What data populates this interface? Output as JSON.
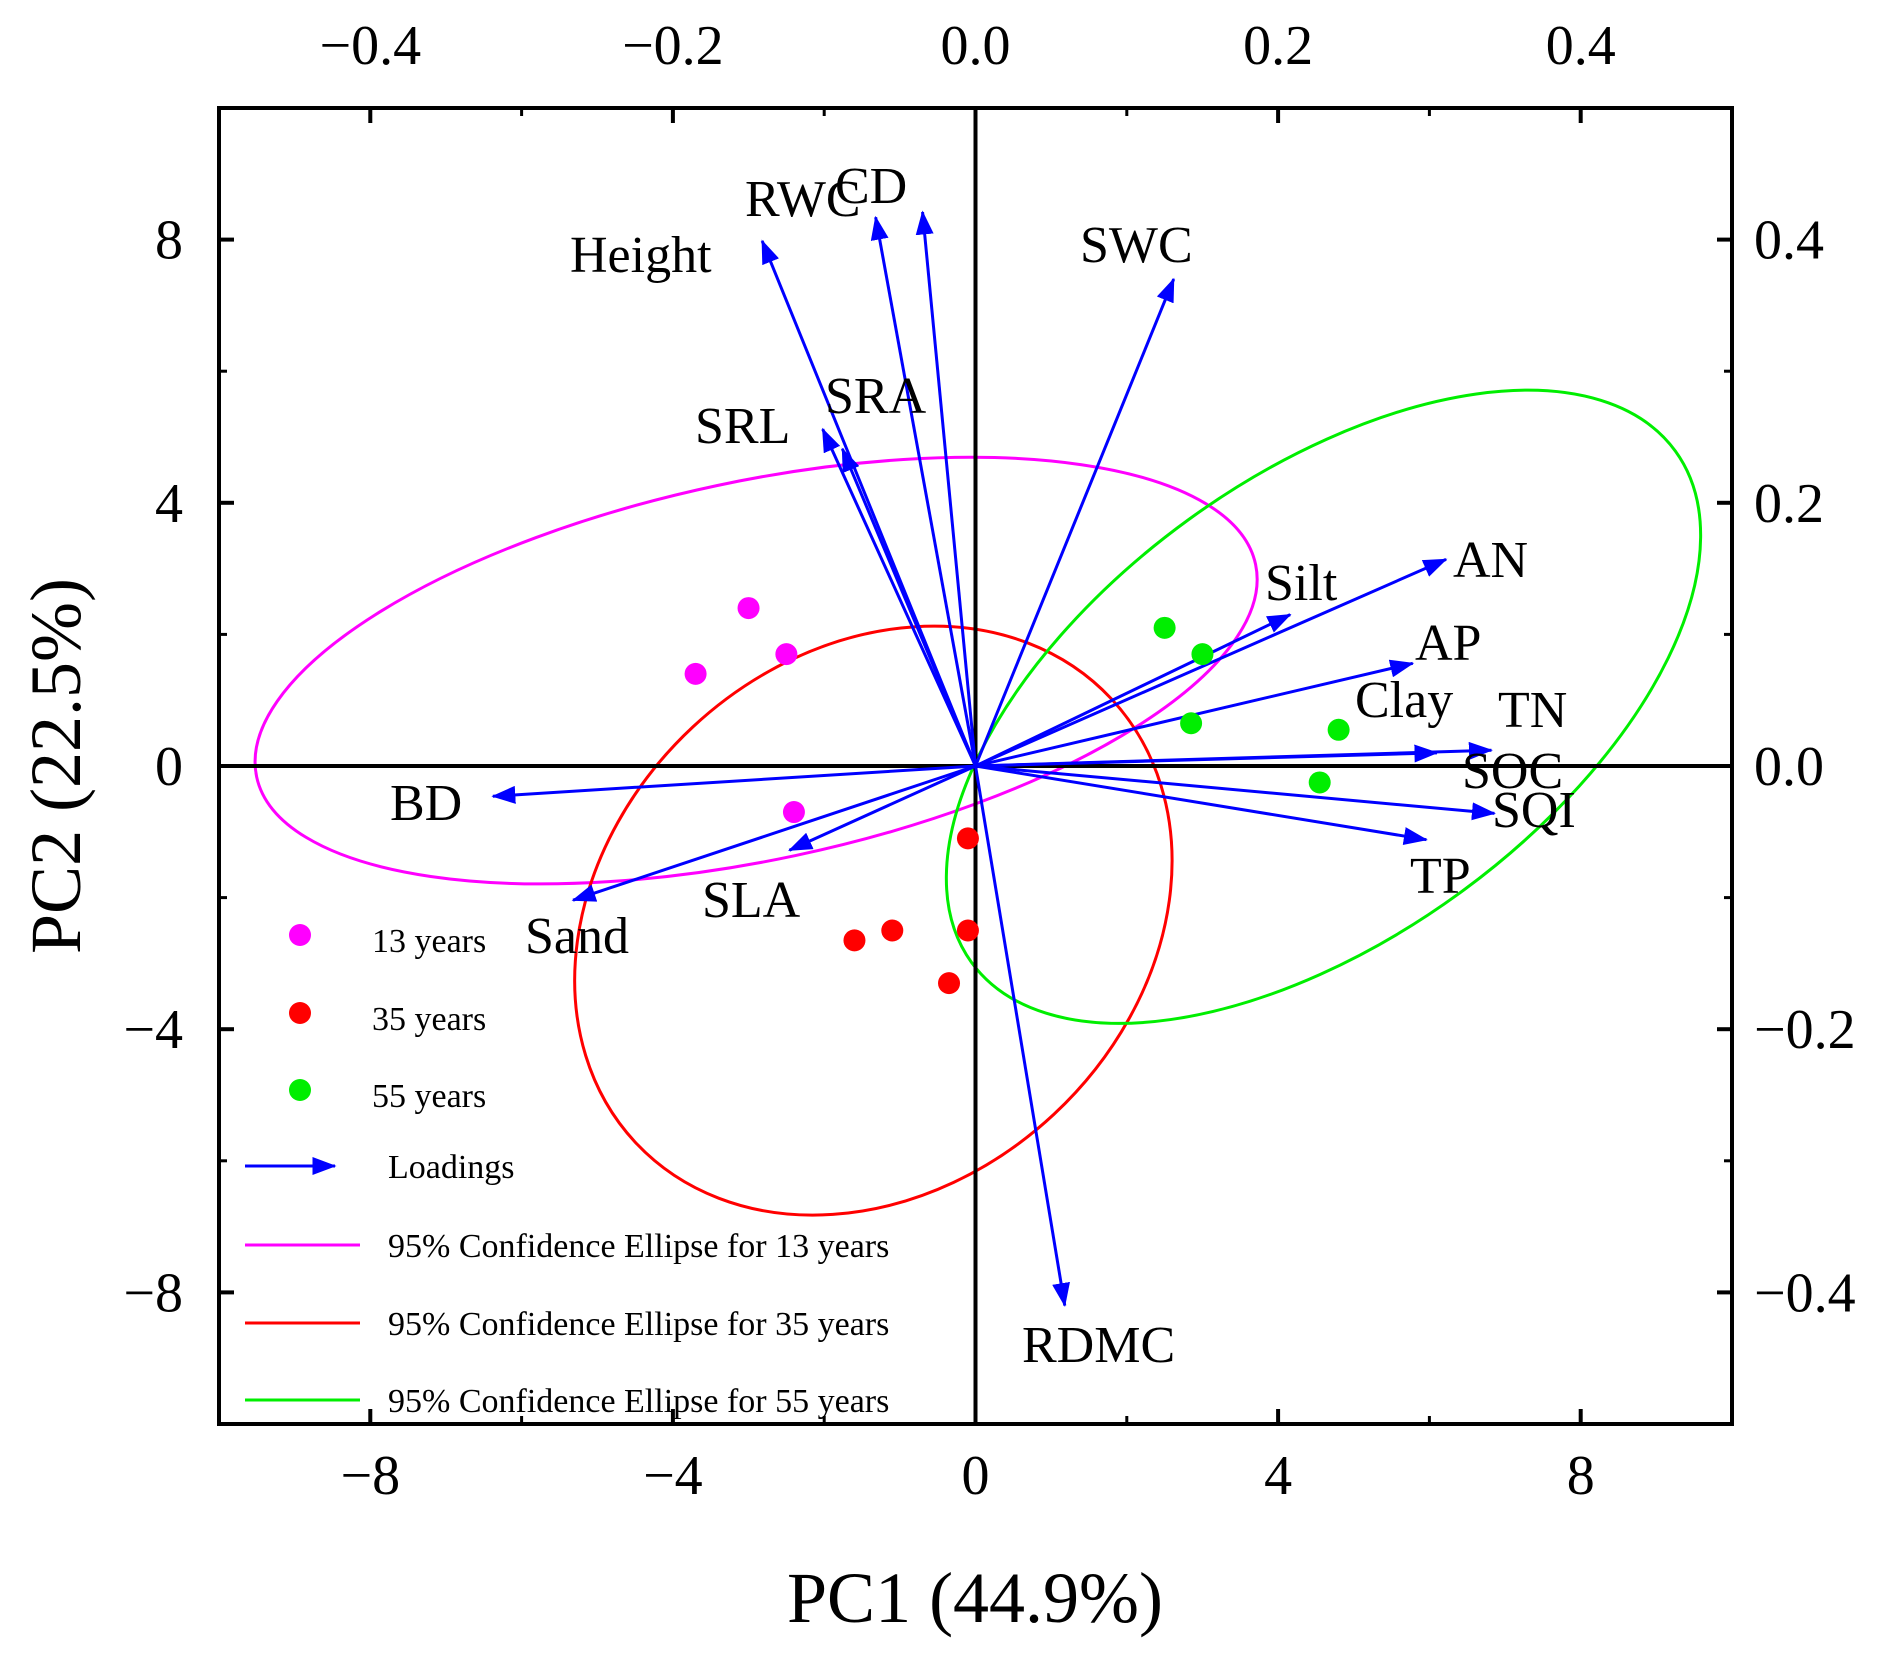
{
  "chart_data": {
    "type": "scatter",
    "subtype": "pca-biplot",
    "xlabel": "PC1 (44.9%)",
    "ylabel": "PC2 (22.5%)",
    "xlim": [
      -10,
      10
    ],
    "ylim": [
      -10,
      10
    ],
    "x_ticks": [
      -8,
      -4,
      0,
      4,
      8
    ],
    "x_tick_labels": [
      "−8",
      "−4",
      "0",
      "4",
      "8"
    ],
    "y_ticks": [
      -8,
      -4,
      0,
      4,
      8
    ],
    "y_tick_labels": [
      "−8",
      "−4",
      "0",
      "4",
      "8"
    ],
    "top_axis": {
      "lim": [
        -0.5,
        0.5
      ],
      "ticks": [
        -0.4,
        -0.2,
        0.0,
        0.2,
        0.4
      ],
      "tick_labels": [
        "−0.4",
        "−0.2",
        "0.0",
        "0.2",
        "0.4"
      ]
    },
    "right_axis": {
      "lim": [
        -0.5,
        0.5
      ],
      "ticks": [
        -0.4,
        -0.2,
        0.0,
        0.2,
        0.4
      ],
      "tick_labels": [
        "−0.4",
        "−0.2",
        "0.0",
        "0.2",
        "0.4"
      ]
    },
    "grid": false,
    "legend_position": "bottom-left",
    "series": [
      {
        "name": "13 years",
        "color": "#ff00ff",
        "points": [
          [
            -3.0,
            2.4
          ],
          [
            -2.5,
            1.7
          ],
          [
            -3.7,
            1.4
          ],
          [
            -2.4,
            -0.7
          ]
        ]
      },
      {
        "name": "35 years",
        "color": "#ff0000",
        "points": [
          [
            -0.1,
            -1.1
          ],
          [
            -0.1,
            -2.5
          ],
          [
            -1.1,
            -2.5
          ],
          [
            -1.6,
            -2.65
          ],
          [
            -0.35,
            -3.3
          ]
        ]
      },
      {
        "name": "55 years",
        "color": "#00ee00",
        "points": [
          [
            2.5,
            2.1
          ],
          [
            3.0,
            1.7
          ],
          [
            2.85,
            0.65
          ],
          [
            4.8,
            0.55
          ],
          [
            4.55,
            -0.25
          ]
        ]
      }
    ],
    "loadings": {
      "name": "Loadings",
      "color": "#0000ff",
      "vectors": [
        {
          "label": "Height",
          "x": -0.141,
          "y": 0.399
        },
        {
          "label": "RWC",
          "x": -0.066,
          "y": 0.417
        },
        {
          "label": "CD",
          "x": -0.035,
          "y": 0.421
        },
        {
          "label": "SWC",
          "x": 0.131,
          "y": 0.37
        },
        {
          "label": "SRL",
          "x": -0.101,
          "y": 0.256
        },
        {
          "label": "SRA",
          "x": -0.088,
          "y": 0.241
        },
        {
          "label": "Silt",
          "x": 0.208,
          "y": 0.115
        },
        {
          "label": "AN",
          "x": 0.311,
          "y": 0.157
        },
        {
          "label": "AP",
          "x": 0.289,
          "y": 0.078
        },
        {
          "label": "TN",
          "x": 0.341,
          "y": 0.012
        },
        {
          "label": "SOC",
          "x": 0.305,
          "y": 0.01
        },
        {
          "label": "SQI",
          "x": 0.343,
          "y": -0.036
        },
        {
          "label": "TP",
          "x": 0.298,
          "y": -0.056
        },
        {
          "label": "RDMC",
          "x": 0.059,
          "y": -0.41
        },
        {
          "label": "BD",
          "x": -0.319,
          "y": -0.023
        },
        {
          "label": "SLA",
          "x": -0.123,
          "y": -0.064
        },
        {
          "label": "Sand",
          "x": -0.266,
          "y": -0.102
        }
      ],
      "extra_labels": [
        "Clay"
      ]
    },
    "ellipses": [
      {
        "name": "95% Confidence Ellipse for 13 years",
        "color": "#ff00ff",
        "cx": -2.9,
        "cy": 1.45,
        "rx": 2.5,
        "ry": 6.75,
        "angle_deg": 78
      },
      {
        "name": "95% Confidence Ellipse for 35 years",
        "color": "#ff0000",
        "cx": -1.35,
        "cy": -2.35,
        "rx": 4.3,
        "ry": 3.5,
        "angle_deg": -43
      },
      {
        "name": "95% Confidence Ellipse for 55 years",
        "color": "#00ee00",
        "cx": 4.6,
        "cy": 0.9,
        "rx": 5.75,
        "ry": 3.05,
        "angle_deg": -36
      }
    ]
  }
}
